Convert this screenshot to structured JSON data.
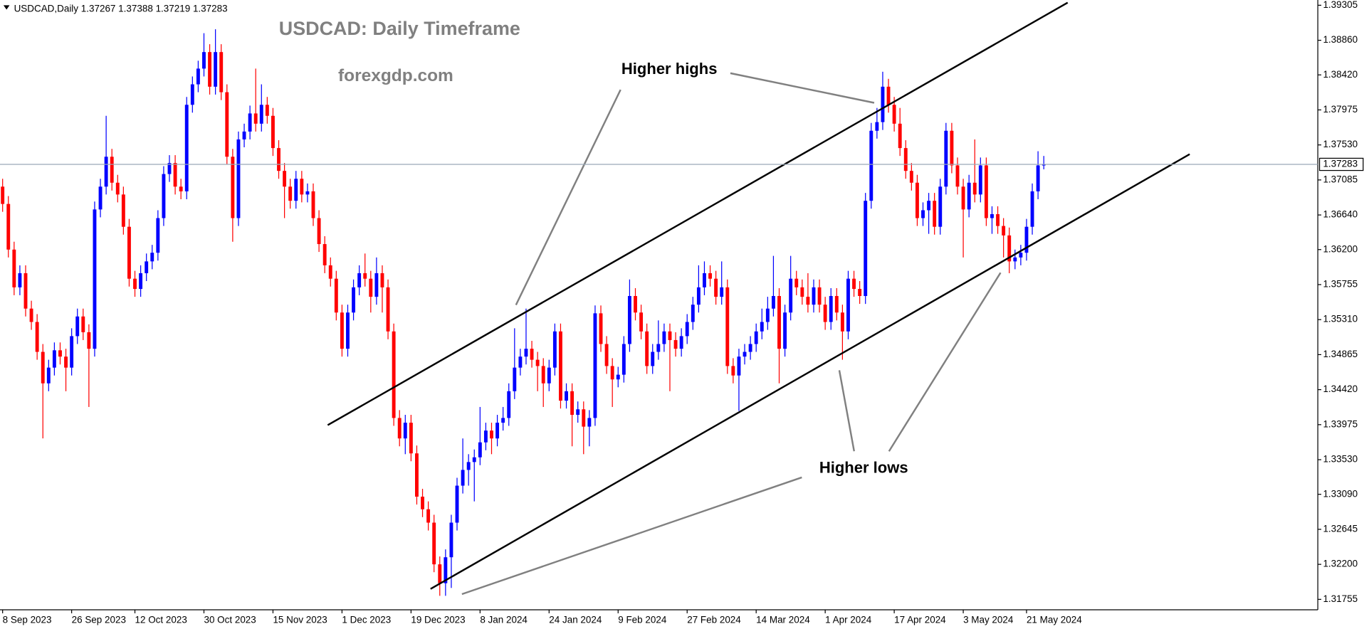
{
  "chart_data": {
    "type": "candlestick",
    "header": "USDCAD,Daily",
    "header_ohlc": [
      1.37267,
      1.37388,
      1.37219,
      1.37283
    ],
    "title": "USDCAD: Daily Timeframe",
    "subtitle": "forexgdp.com",
    "annotations": [
      "Higher highs",
      "Higher lows"
    ],
    "last_price": 1.37283,
    "up_color": "#0000ff",
    "down_color": "#ff0000",
    "ylim": [
      1.31755,
      1.39305
    ],
    "yticks": [
      1.39305,
      {
        "value": 1.3886,
        "label": "1.38860"
      },
      {
        "value": 1.3842,
        "label": "1.38420"
      },
      1.37975,
      {
        "value": 1.3753,
        "label": "1.37530"
      },
      1.37085,
      {
        "value": 1.3664,
        "label": "1.36640"
      },
      {
        "value": 1.362,
        "label": "1.36200"
      },
      1.35755,
      {
        "value": 1.3531,
        "label": "1.35310"
      },
      1.34865,
      {
        "value": 1.3442,
        "label": "1.34420"
      },
      1.33975,
      {
        "value": 1.3353,
        "label": "1.33530"
      },
      {
        "value": 1.3309,
        "label": "1.33090"
      },
      1.32645,
      {
        "value": 1.322,
        "label": "1.32200"
      },
      1.31755
    ],
    "categories": [
      "8 Sep 2023",
      null,
      null,
      null,
      null,
      null,
      null,
      null,
      null,
      null,
      null,
      null,
      "26 Sep 2023",
      null,
      null,
      null,
      null,
      null,
      null,
      null,
      null,
      null,
      null,
      "12 Oct 2023",
      null,
      null,
      null,
      null,
      null,
      null,
      null,
      null,
      null,
      null,
      null,
      "30 Oct 2023",
      null,
      null,
      null,
      null,
      null,
      null,
      null,
      null,
      null,
      null,
      null,
      "15 Nov 2023",
      null,
      null,
      null,
      null,
      null,
      null,
      null,
      null,
      null,
      null,
      null,
      "1 Dec 2023",
      null,
      null,
      null,
      null,
      null,
      null,
      null,
      null,
      null,
      null,
      null,
      "19 Dec 2023",
      null,
      null,
      null,
      null,
      null,
      null,
      null,
      null,
      null,
      null,
      null,
      "8 Jan 2024",
      null,
      null,
      null,
      null,
      null,
      null,
      null,
      null,
      null,
      null,
      null,
      "24 Jan 2024",
      null,
      null,
      null,
      null,
      null,
      null,
      null,
      null,
      null,
      null,
      null,
      "9 Feb 2024",
      null,
      null,
      null,
      null,
      null,
      null,
      null,
      null,
      null,
      null,
      null,
      "27 Feb 2024",
      null,
      null,
      null,
      null,
      null,
      null,
      null,
      null,
      null,
      null,
      null,
      "14 Mar 2024",
      null,
      null,
      null,
      null,
      null,
      null,
      null,
      null,
      null,
      null,
      null,
      "1 Apr 2024",
      null,
      null,
      null,
      null,
      null,
      null,
      null,
      null,
      null,
      null,
      null,
      "17 Apr 2024",
      null,
      null,
      null,
      null,
      null,
      null,
      null,
      null,
      null,
      null,
      null,
      "3 May 2024",
      null,
      null,
      null,
      null,
      null,
      null,
      null,
      null,
      null,
      null,
      "21 May 2024",
      null,
      null,
      null
    ],
    "values": [
      [
        1.37,
        1.371,
        1.3668,
        1.3678
      ],
      [
        1.3678,
        1.3688,
        1.361,
        1.362
      ],
      [
        1.362,
        1.363,
        1.3562,
        1.3572
      ],
      [
        1.3572,
        1.36,
        1.3562,
        1.359
      ],
      [
        1.359,
        1.36,
        1.3535,
        1.3545
      ],
      [
        1.3545,
        1.3555,
        1.3518,
        1.3528
      ],
      [
        1.3528,
        1.3538,
        1.348,
        1.349
      ],
      [
        1.349,
        1.35,
        1.338,
        1.345
      ],
      [
        1.345,
        1.348,
        1.344,
        1.347
      ],
      [
        1.347,
        1.3502,
        1.346,
        1.3492
      ],
      [
        1.3492,
        1.3502,
        1.3474,
        1.3484
      ],
      [
        1.3484,
        1.3494,
        1.344,
        1.347
      ],
      [
        1.347,
        1.352,
        1.346,
        1.351
      ],
      [
        1.351,
        1.3545,
        1.35,
        1.3535
      ],
      [
        1.3535,
        1.3545,
        1.3505,
        1.3515
      ],
      [
        1.3515,
        1.3525,
        1.342,
        1.3494
      ],
      [
        1.3494,
        1.3681,
        1.3484,
        1.3671
      ],
      [
        1.3671,
        1.371,
        1.3661,
        1.37
      ],
      [
        1.37,
        1.379,
        1.369,
        1.3738
      ],
      [
        1.3738,
        1.3748,
        1.3695,
        1.3705
      ],
      [
        1.3705,
        1.3715,
        1.368,
        1.369
      ],
      [
        1.369,
        1.37,
        1.3639,
        1.3649
      ],
      [
        1.3649,
        1.3659,
        1.3573,
        1.3583
      ],
      [
        1.3583,
        1.3593,
        1.356,
        1.357
      ],
      [
        1.357,
        1.36,
        1.356,
        1.359
      ],
      [
        1.359,
        1.3615,
        1.358,
        1.3605
      ],
      [
        1.3605,
        1.3626,
        1.3595,
        1.3616
      ],
      [
        1.3616,
        1.367,
        1.3606,
        1.366
      ],
      [
        1.366,
        1.3726,
        1.365,
        1.3716
      ],
      [
        1.3716,
        1.374,
        1.3706,
        1.373
      ],
      [
        1.373,
        1.374,
        1.369,
        1.37
      ],
      [
        1.37,
        1.371,
        1.3684,
        1.3694
      ],
      [
        1.3694,
        1.3814,
        1.3684,
        1.3804
      ],
      [
        1.3804,
        1.384,
        1.3794,
        1.383
      ],
      [
        1.383,
        1.386,
        1.382,
        1.385
      ],
      [
        1.385,
        1.3895,
        1.384,
        1.3871
      ],
      [
        1.3871,
        1.3881,
        1.3817,
        1.3827
      ],
      [
        1.3827,
        1.39,
        1.3817,
        1.3871
      ],
      [
        1.3871,
        1.3881,
        1.381,
        1.382
      ],
      [
        1.382,
        1.383,
        1.3728,
        1.3738
      ],
      [
        1.3738,
        1.3748,
        1.363,
        1.366
      ],
      [
        1.366,
        1.377,
        1.365,
        1.376
      ],
      [
        1.376,
        1.378,
        1.375,
        1.377
      ],
      [
        1.377,
        1.3803,
        1.376,
        1.3793
      ],
      [
        1.3793,
        1.385,
        1.377,
        1.378
      ],
      [
        1.378,
        1.383,
        1.377,
        1.3804
      ],
      [
        1.3804,
        1.3814,
        1.378,
        1.379
      ],
      [
        1.379,
        1.38,
        1.3739,
        1.3749
      ],
      [
        1.3749,
        1.3759,
        1.371,
        1.372
      ],
      [
        1.372,
        1.373,
        1.366,
        1.37
      ],
      [
        1.37,
        1.371,
        1.3672,
        1.3682
      ],
      [
        1.3682,
        1.372,
        1.3672,
        1.371
      ],
      [
        1.371,
        1.372,
        1.368,
        1.369
      ],
      [
        1.369,
        1.3704,
        1.368,
        1.3694
      ],
      [
        1.3694,
        1.3704,
        1.365,
        1.366
      ],
      [
        1.366,
        1.367,
        1.3617,
        1.3627
      ],
      [
        1.3627,
        1.3637,
        1.359,
        1.36
      ],
      [
        1.36,
        1.361,
        1.3573,
        1.3583
      ],
      [
        1.3583,
        1.3593,
        1.353,
        1.354
      ],
      [
        1.354,
        1.355,
        1.3484,
        1.3494
      ],
      [
        1.3494,
        1.355,
        1.3484,
        1.354
      ],
      [
        1.354,
        1.3582,
        1.353,
        1.3572
      ],
      [
        1.3572,
        1.36,
        1.3562,
        1.359
      ],
      [
        1.359,
        1.3615,
        1.3573,
        1.3583
      ],
      [
        1.3583,
        1.3593,
        1.354,
        1.356
      ],
      [
        1.356,
        1.361,
        1.355,
        1.359
      ],
      [
        1.359,
        1.36,
        1.354,
        1.3572
      ],
      [
        1.3572,
        1.3582,
        1.3506,
        1.3516
      ],
      [
        1.3516,
        1.3526,
        1.3396,
        1.3406
      ],
      [
        1.3406,
        1.3416,
        1.337,
        1.338
      ],
      [
        1.338,
        1.341,
        1.336,
        1.34
      ],
      [
        1.34,
        1.341,
        1.3351,
        1.3361
      ],
      [
        1.3361,
        1.3371,
        1.3296,
        1.3306
      ],
      [
        1.3306,
        1.3316,
        1.328,
        1.329
      ],
      [
        1.329,
        1.33,
        1.3263,
        1.3273
      ],
      [
        1.3273,
        1.3283,
        1.321,
        1.322
      ],
      [
        1.322,
        1.323,
        1.318,
        1.3196
      ],
      [
        1.3196,
        1.3239,
        1.318,
        1.3229
      ],
      [
        1.3229,
        1.3283,
        1.319,
        1.3273
      ],
      [
        1.3273,
        1.333,
        1.3263,
        1.332
      ],
      [
        1.332,
        1.338,
        1.331,
        1.334
      ],
      [
        1.334,
        1.336,
        1.332,
        1.335
      ],
      [
        1.335,
        1.3366,
        1.33,
        1.3356
      ],
      [
        1.3356,
        1.342,
        1.3346,
        1.3375
      ],
      [
        1.3375,
        1.34,
        1.3365,
        1.339
      ],
      [
        1.339,
        1.34,
        1.336,
        1.338
      ],
      [
        1.338,
        1.341,
        1.337,
        1.34
      ],
      [
        1.34,
        1.342,
        1.339,
        1.3406
      ],
      [
        1.3406,
        1.345,
        1.3396,
        1.344
      ],
      [
        1.344,
        1.352,
        1.343,
        1.347
      ],
      [
        1.347,
        1.3494,
        1.346,
        1.3484
      ],
      [
        1.3484,
        1.3545,
        1.3474,
        1.3494
      ],
      [
        1.3494,
        1.3504,
        1.347,
        1.348
      ],
      [
        1.348,
        1.349,
        1.344,
        1.3472
      ],
      [
        1.3472,
        1.3482,
        1.342,
        1.345
      ],
      [
        1.345,
        1.348,
        1.344,
        1.347
      ],
      [
        1.347,
        1.3526,
        1.346,
        1.3516
      ],
      [
        1.3516,
        1.3526,
        1.3418,
        1.3428
      ],
      [
        1.3428,
        1.345,
        1.3418,
        1.344
      ],
      [
        1.344,
        1.345,
        1.337,
        1.341
      ],
      [
        1.341,
        1.3427,
        1.34,
        1.3417
      ],
      [
        1.3417,
        1.3427,
        1.336,
        1.3395
      ],
      [
        1.3395,
        1.3416,
        1.337,
        1.3406
      ],
      [
        1.3406,
        1.3549,
        1.3396,
        1.3539
      ],
      [
        1.3539,
        1.3549,
        1.349,
        1.35
      ],
      [
        1.35,
        1.351,
        1.3462,
        1.3472
      ],
      [
        1.3472,
        1.3482,
        1.342,
        1.3455
      ],
      [
        1.3455,
        1.3471,
        1.3445,
        1.3461
      ],
      [
        1.3461,
        1.351,
        1.3451,
        1.35
      ],
      [
        1.35,
        1.3582,
        1.349,
        1.3561
      ],
      [
        1.3561,
        1.3571,
        1.353,
        1.354
      ],
      [
        1.354,
        1.355,
        1.3506,
        1.3516
      ],
      [
        1.3516,
        1.3526,
        1.3462,
        1.3472
      ],
      [
        1.3472,
        1.35,
        1.3462,
        1.349
      ],
      [
        1.349,
        1.353,
        1.348,
        1.35
      ],
      [
        1.35,
        1.3526,
        1.349,
        1.3516
      ],
      [
        1.3516,
        1.3526,
        1.344,
        1.3505
      ],
      [
        1.3505,
        1.3515,
        1.3484,
        1.3494
      ],
      [
        1.3494,
        1.352,
        1.3484,
        1.351
      ],
      [
        1.351,
        1.3538,
        1.35,
        1.3528
      ],
      [
        1.3528,
        1.356,
        1.3518,
        1.355
      ],
      [
        1.355,
        1.36,
        1.354,
        1.3572
      ],
      [
        1.3572,
        1.3605,
        1.3562,
        1.359
      ],
      [
        1.359,
        1.36,
        1.3573,
        1.3583
      ],
      [
        1.3583,
        1.3593,
        1.355,
        1.356
      ],
      [
        1.356,
        1.3605,
        1.355,
        1.3572
      ],
      [
        1.3572,
        1.3582,
        1.3462,
        1.3472
      ],
      [
        1.3472,
        1.3482,
        1.345,
        1.346
      ],
      [
        1.346,
        1.3494,
        1.3415,
        1.3484
      ],
      [
        1.3484,
        1.35,
        1.3474,
        1.349
      ],
      [
        1.349,
        1.351,
        1.348,
        1.35
      ],
      [
        1.35,
        1.3526,
        1.349,
        1.3516
      ],
      [
        1.3516,
        1.3545,
        1.3506,
        1.3528
      ],
      [
        1.3528,
        1.356,
        1.3518,
        1.3545
      ],
      [
        1.3545,
        1.3612,
        1.3535,
        1.3561
      ],
      [
        1.3561,
        1.3571,
        1.345,
        1.3494
      ],
      [
        1.3494,
        1.355,
        1.3484,
        1.354
      ],
      [
        1.354,
        1.3612,
        1.353,
        1.3583
      ],
      [
        1.3583,
        1.3593,
        1.3562,
        1.3572
      ],
      [
        1.3572,
        1.3582,
        1.355,
        1.356
      ],
      [
        1.356,
        1.359,
        1.354,
        1.355
      ],
      [
        1.355,
        1.3582,
        1.354,
        1.3572
      ],
      [
        1.3572,
        1.3582,
        1.354,
        1.355
      ],
      [
        1.355,
        1.356,
        1.3518,
        1.3528
      ],
      [
        1.3528,
        1.3571,
        1.3518,
        1.3561
      ],
      [
        1.3561,
        1.3571,
        1.353,
        1.354
      ],
      [
        1.354,
        1.355,
        1.348,
        1.3516
      ],
      [
        1.3516,
        1.3593,
        1.3506,
        1.3583
      ],
      [
        1.3583,
        1.3593,
        1.356,
        1.357
      ],
      [
        1.357,
        1.358,
        1.3551,
        1.3561
      ],
      [
        1.3561,
        1.3692,
        1.3551,
        1.3682
      ],
      [
        1.3682,
        1.3781,
        1.3672,
        1.3771
      ],
      [
        1.3771,
        1.38,
        1.3761,
        1.3782
      ],
      [
        1.3782,
        1.3846,
        1.3772,
        1.3827
      ],
      [
        1.3827,
        1.3837,
        1.3794,
        1.3804
      ],
      [
        1.3804,
        1.3814,
        1.377,
        1.378
      ],
      [
        1.378,
        1.38,
        1.3739,
        1.3749
      ],
      [
        1.3749,
        1.3759,
        1.371,
        1.372
      ],
      [
        1.372,
        1.373,
        1.3695,
        1.3705
      ],
      [
        1.3705,
        1.3715,
        1.365,
        1.366
      ],
      [
        1.366,
        1.368,
        1.365,
        1.367
      ],
      [
        1.367,
        1.3692,
        1.364,
        1.3682
      ],
      [
        1.3682,
        1.3692,
        1.3639,
        1.3649
      ],
      [
        1.3649,
        1.371,
        1.3639,
        1.37
      ],
      [
        1.37,
        1.3781,
        1.369,
        1.3771
      ],
      [
        1.3771,
        1.3781,
        1.3717,
        1.3727
      ],
      [
        1.3727,
        1.3737,
        1.369,
        1.37
      ],
      [
        1.37,
        1.371,
        1.361,
        1.3671
      ],
      [
        1.3671,
        1.3715,
        1.3661,
        1.3705
      ],
      [
        1.3705,
        1.376,
        1.368,
        1.369
      ],
      [
        1.369,
        1.3737,
        1.368,
        1.3727
      ],
      [
        1.3727,
        1.3737,
        1.365,
        1.366
      ],
      [
        1.366,
        1.3675,
        1.364,
        1.3665
      ],
      [
        1.3665,
        1.3675,
        1.364,
        1.365
      ],
      [
        1.365,
        1.366,
        1.361,
        1.3638
      ],
      [
        1.3638,
        1.3648,
        1.359,
        1.3605
      ],
      [
        1.3605,
        1.362,
        1.3595,
        1.361
      ],
      [
        1.361,
        1.3626,
        1.36,
        1.3616
      ],
      [
        1.3616,
        1.3659,
        1.3606,
        1.3649
      ],
      [
        1.3649,
        1.3704,
        1.3639,
        1.3694
      ],
      [
        1.3694,
        1.3745,
        1.3684,
        1.3727
      ],
      [
        1.3727,
        1.3739,
        1.3722,
        1.3728
      ]
    ]
  }
}
